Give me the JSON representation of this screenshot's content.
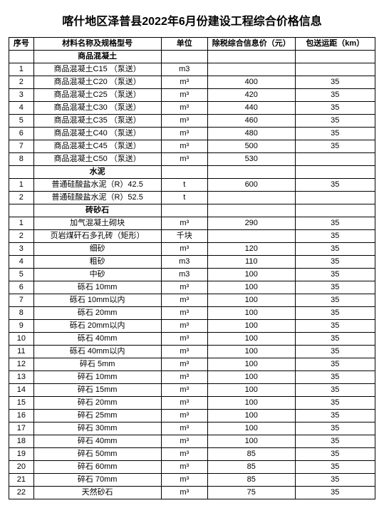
{
  "title": "喀什地区泽普县2022年6月份建设工程综合价格信息",
  "columns": {
    "seq": "序号",
    "name": "材料名称及规格型号",
    "unit": "单位",
    "price": "除税综合信息价（元）",
    "dist": "包送运距（km）"
  },
  "sections": [
    {
      "header": "商品混凝土",
      "rows": [
        {
          "seq": "1",
          "name": "商品混凝土C15 （泵送）",
          "unit": "m3",
          "price": "",
          "dist": ""
        },
        {
          "seq": "2",
          "name": "商品混凝土C20 （泵送）",
          "unit": "m³",
          "price": "400",
          "dist": "35"
        },
        {
          "seq": "3",
          "name": "商品混凝土C25 （泵送）",
          "unit": "m³",
          "price": "420",
          "dist": "35"
        },
        {
          "seq": "4",
          "name": "商品混凝土C30 （泵送）",
          "unit": "m³",
          "price": "440",
          "dist": "35"
        },
        {
          "seq": "5",
          "name": "商品混凝土C35 （泵送）",
          "unit": "m³",
          "price": "460",
          "dist": "35"
        },
        {
          "seq": "6",
          "name": "商品混凝土C40 （泵送）",
          "unit": "m³",
          "price": "480",
          "dist": "35"
        },
        {
          "seq": "7",
          "name": "商品混凝土C45 （泵送）",
          "unit": "m³",
          "price": "500",
          "dist": "35"
        },
        {
          "seq": "8",
          "name": "商品混凝土C50 （泵送）",
          "unit": "m³",
          "price": "530",
          "dist": ""
        }
      ]
    },
    {
      "header": "水泥",
      "rows": [
        {
          "seq": "1",
          "name": "普通硅酸盐水泥（R）42.5",
          "unit": "t",
          "price": "600",
          "dist": "35"
        },
        {
          "seq": "2",
          "name": "普通硅酸盐水泥（R）52.5",
          "unit": "t",
          "price": "",
          "dist": ""
        }
      ]
    },
    {
      "header": "砖砂石",
      "rows": [
        {
          "seq": "1",
          "name": "加气混凝土砌块",
          "unit": "m³",
          "price": "290",
          "dist": "35"
        },
        {
          "seq": "2",
          "name": "页岩煤矸石多孔砖（矩形）",
          "unit": "千块",
          "price": "",
          "dist": "35"
        },
        {
          "seq": "3",
          "name": "细砂",
          "unit": "m³",
          "price": "120",
          "dist": "35"
        },
        {
          "seq": "4",
          "name": "粗砂",
          "unit": "m3",
          "price": "110",
          "dist": "35"
        },
        {
          "seq": "5",
          "name": "中砂",
          "unit": "m3",
          "price": "100",
          "dist": "35"
        },
        {
          "seq": "6",
          "name": "砾石 10mm",
          "unit": "m³",
          "price": "100",
          "dist": "35"
        },
        {
          "seq": "7",
          "name": "砾石 10mm以内",
          "unit": "m³",
          "price": "100",
          "dist": "35"
        },
        {
          "seq": "8",
          "name": "砾石 20mm",
          "unit": "m³",
          "price": "100",
          "dist": "35"
        },
        {
          "seq": "9",
          "name": "砾石 20mm以内",
          "unit": "m³",
          "price": "100",
          "dist": "35"
        },
        {
          "seq": "10",
          "name": "砾石 40mm",
          "unit": "m³",
          "price": "100",
          "dist": "35"
        },
        {
          "seq": "11",
          "name": "砾石 40mm以内",
          "unit": "m³",
          "price": "100",
          "dist": "35"
        },
        {
          "seq": "12",
          "name": "碎石 5mm",
          "unit": "m³",
          "price": "100",
          "dist": "35"
        },
        {
          "seq": "13",
          "name": "碎石 10mm",
          "unit": "m³",
          "price": "100",
          "dist": "35"
        },
        {
          "seq": "14",
          "name": "碎石 15mm",
          "unit": "m³",
          "price": "100",
          "dist": "35"
        },
        {
          "seq": "15",
          "name": "碎石 20mm",
          "unit": "m³",
          "price": "100",
          "dist": "35"
        },
        {
          "seq": "16",
          "name": "碎石 25mm",
          "unit": "m³",
          "price": "100",
          "dist": "35"
        },
        {
          "seq": "17",
          "name": "碎石 30mm",
          "unit": "m³",
          "price": "100",
          "dist": "35"
        },
        {
          "seq": "18",
          "name": "碎石 40mm",
          "unit": "m³",
          "price": "100",
          "dist": "35"
        },
        {
          "seq": "19",
          "name": "碎石 50mm",
          "unit": "m³",
          "price": "85",
          "dist": "35"
        },
        {
          "seq": "20",
          "name": "碎石 60mm",
          "unit": "m³",
          "price": "85",
          "dist": "35"
        },
        {
          "seq": "21",
          "name": "碎石 70mm",
          "unit": "m³",
          "price": "85",
          "dist": "35"
        },
        {
          "seq": "22",
          "name": "天然砂石",
          "unit": "m³",
          "price": "75",
          "dist": "35"
        }
      ]
    }
  ]
}
